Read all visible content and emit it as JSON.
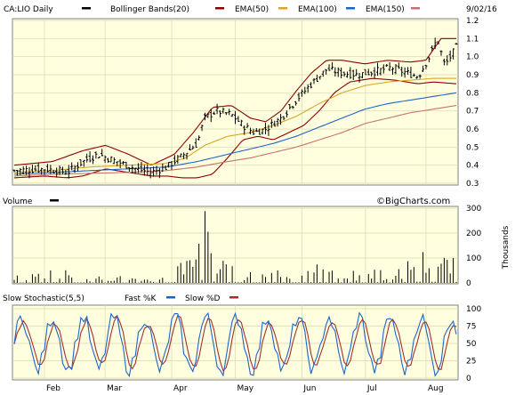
{
  "header": {
    "symbol": "CA:LIO Daily",
    "date": "9/02/16",
    "watermark": "©BigCharts.com"
  },
  "colors": {
    "panel_bg": "#ffffe0",
    "grid": "#d8d8b0",
    "frame": "#808080",
    "price": "#000000",
    "bollinger": "#8b0000",
    "ema50": "#daa520",
    "ema100": "#1e64c8",
    "ema150": "#c87070",
    "fast_k": "#1e64c8",
    "slow_d": "#a03030"
  },
  "legend": {
    "price": "CA:LIO Daily",
    "bollinger": "Bollinger Bands(20)",
    "ema50": "EMA(50)",
    "ema100": "EMA(100)",
    "ema150": "EMA(150)",
    "volume": "Volume",
    "volume_unit": "Thousands",
    "stoch": "Slow Stochastic(5,5)",
    "fast_k": "Fast %K",
    "slow_d": "Slow %D"
  },
  "chart_data": [
    {
      "type": "line",
      "title": "CA:LIO Daily",
      "x": [
        "Feb",
        "Mar",
        "Apr",
        "May",
        "Jun",
        "Jul",
        "Aug"
      ],
      "ylim": [
        0.3,
        1.2
      ],
      "yticks": [
        "0.3",
        "0.4",
        "0.5",
        "0.6",
        "0.7",
        "0.8",
        "0.9",
        "1.0",
        "1.1",
        "1.2"
      ],
      "grid": true,
      "legend_position": "top",
      "series": [
        {
          "name": "CA:LIO Daily",
          "anchors": [
            [
              0,
              0.37
            ],
            [
              8,
              0.38
            ],
            [
              14,
              0.36
            ],
            [
              18,
              0.42
            ],
            [
              22,
              0.46
            ],
            [
              27,
              0.42
            ],
            [
              32,
              0.38
            ],
            [
              36,
              0.36
            ],
            [
              40,
              0.39
            ],
            [
              44,
              0.45
            ],
            [
              48,
              0.52
            ],
            [
              50,
              0.66
            ],
            [
              53,
              0.7
            ],
            [
              57,
              0.68
            ],
            [
              60,
              0.62
            ],
            [
              63,
              0.58
            ],
            [
              66,
              0.6
            ],
            [
              70,
              0.66
            ],
            [
              74,
              0.76
            ],
            [
              78,
              0.85
            ],
            [
              82,
              0.93
            ],
            [
              86,
              0.91
            ],
            [
              90,
              0.9
            ],
            [
              95,
              0.92
            ],
            [
              99,
              0.94
            ],
            [
              103,
              0.91
            ],
            [
              106,
              0.89
            ],
            [
              109,
              1.0
            ],
            [
              111,
              1.1
            ],
            [
              113,
              0.95
            ],
            [
              116,
              1.05
            ]
          ]
        },
        {
          "name": "Bollinger Bands(20) upper",
          "anchors": [
            [
              0,
              0.4
            ],
            [
              10,
              0.42
            ],
            [
              18,
              0.48
            ],
            [
              24,
              0.51
            ],
            [
              30,
              0.46
            ],
            [
              36,
              0.4
            ],
            [
              42,
              0.46
            ],
            [
              47,
              0.58
            ],
            [
              52,
              0.72
            ],
            [
              57,
              0.73
            ],
            [
              62,
              0.66
            ],
            [
              66,
              0.64
            ],
            [
              70,
              0.7
            ],
            [
              74,
              0.81
            ],
            [
              78,
              0.91
            ],
            [
              82,
              0.98
            ],
            [
              86,
              0.98
            ],
            [
              92,
              0.96
            ],
            [
              98,
              0.98
            ],
            [
              104,
              0.97
            ],
            [
              108,
              0.98
            ],
            [
              112,
              1.1
            ],
            [
              116,
              1.1
            ]
          ]
        },
        {
          "name": "Bollinger Bands(20) lower",
          "anchors": [
            [
              0,
              0.33
            ],
            [
              8,
              0.34
            ],
            [
              14,
              0.33
            ],
            [
              18,
              0.34
            ],
            [
              24,
              0.38
            ],
            [
              30,
              0.36
            ],
            [
              36,
              0.34
            ],
            [
              40,
              0.34
            ],
            [
              44,
              0.33
            ],
            [
              48,
              0.33
            ],
            [
              52,
              0.35
            ],
            [
              56,
              0.44
            ],
            [
              60,
              0.54
            ],
            [
              64,
              0.56
            ],
            [
              68,
              0.54
            ],
            [
              72,
              0.58
            ],
            [
              76,
              0.62
            ],
            [
              80,
              0.7
            ],
            [
              84,
              0.8
            ],
            [
              88,
              0.86
            ],
            [
              94,
              0.88
            ],
            [
              100,
              0.87
            ],
            [
              106,
              0.85
            ],
            [
              110,
              0.86
            ],
            [
              116,
              0.85
            ]
          ]
        },
        {
          "name": "EMA(50)",
          "anchors": [
            [
              0,
              0.36
            ],
            [
              10,
              0.37
            ],
            [
              20,
              0.39
            ],
            [
              30,
              0.4
            ],
            [
              40,
              0.41
            ],
            [
              45,
              0.44
            ],
            [
              50,
              0.51
            ],
            [
              56,
              0.56
            ],
            [
              62,
              0.58
            ],
            [
              68,
              0.62
            ],
            [
              74,
              0.67
            ],
            [
              80,
              0.74
            ],
            [
              86,
              0.8
            ],
            [
              92,
              0.84
            ],
            [
              98,
              0.86
            ],
            [
              104,
              0.87
            ],
            [
              110,
              0.88
            ],
            [
              116,
              0.88
            ]
          ]
        },
        {
          "name": "EMA(100)",
          "anchors": [
            [
              0,
              0.35
            ],
            [
              10,
              0.36
            ],
            [
              20,
              0.37
            ],
            [
              30,
              0.38
            ],
            [
              40,
              0.39
            ],
            [
              48,
              0.42
            ],
            [
              56,
              0.46
            ],
            [
              62,
              0.49
            ],
            [
              68,
              0.52
            ],
            [
              74,
              0.56
            ],
            [
              80,
              0.61
            ],
            [
              86,
              0.66
            ],
            [
              92,
              0.71
            ],
            [
              98,
              0.74
            ],
            [
              104,
              0.76
            ],
            [
              110,
              0.78
            ],
            [
              116,
              0.8
            ]
          ]
        },
        {
          "name": "EMA(150)",
          "anchors": [
            [
              0,
              0.34
            ],
            [
              10,
              0.35
            ],
            [
              20,
              0.355
            ],
            [
              30,
              0.36
            ],
            [
              40,
              0.37
            ],
            [
              48,
              0.39
            ],
            [
              56,
              0.42
            ],
            [
              62,
              0.44
            ],
            [
              68,
              0.47
            ],
            [
              74,
              0.5
            ],
            [
              80,
              0.54
            ],
            [
              86,
              0.58
            ],
            [
              92,
              0.63
            ],
            [
              98,
              0.66
            ],
            [
              104,
              0.69
            ],
            [
              110,
              0.71
            ],
            [
              116,
              0.73
            ]
          ]
        }
      ]
    },
    {
      "type": "bar",
      "title": "Volume",
      "ylabel": "Thousands",
      "ylim": [
        0,
        300
      ],
      "yticks": [
        "0",
        "100",
        "200",
        "300"
      ],
      "volume_anchors": [
        [
          0,
          25
        ],
        [
          5,
          35
        ],
        [
          10,
          60
        ],
        [
          15,
          40
        ],
        [
          20,
          30
        ],
        [
          25,
          30
        ],
        [
          30,
          20
        ],
        [
          35,
          15
        ],
        [
          40,
          30
        ],
        [
          44,
          90
        ],
        [
          48,
          200
        ],
        [
          50,
          260
        ],
        [
          52,
          120
        ],
        [
          56,
          60
        ],
        [
          60,
          50
        ],
        [
          64,
          40
        ],
        [
          68,
          60
        ],
        [
          72,
          50
        ],
        [
          76,
          45
        ],
        [
          80,
          70
        ],
        [
          84,
          40
        ],
        [
          88,
          45
        ],
        [
          92,
          40
        ],
        [
          96,
          50
        ],
        [
          100,
          40
        ],
        [
          104,
          90
        ],
        [
          108,
          120
        ],
        [
          110,
          90
        ],
        [
          112,
          100
        ],
        [
          116,
          80
        ]
      ]
    },
    {
      "type": "line",
      "title": "Slow Stochastic(5,5)",
      "ylim": [
        0,
        100
      ],
      "yticks": [
        "0",
        "25",
        "50",
        "75",
        "100"
      ],
      "series": [
        {
          "name": "Fast %K"
        },
        {
          "name": "Slow %D"
        }
      ]
    }
  ]
}
